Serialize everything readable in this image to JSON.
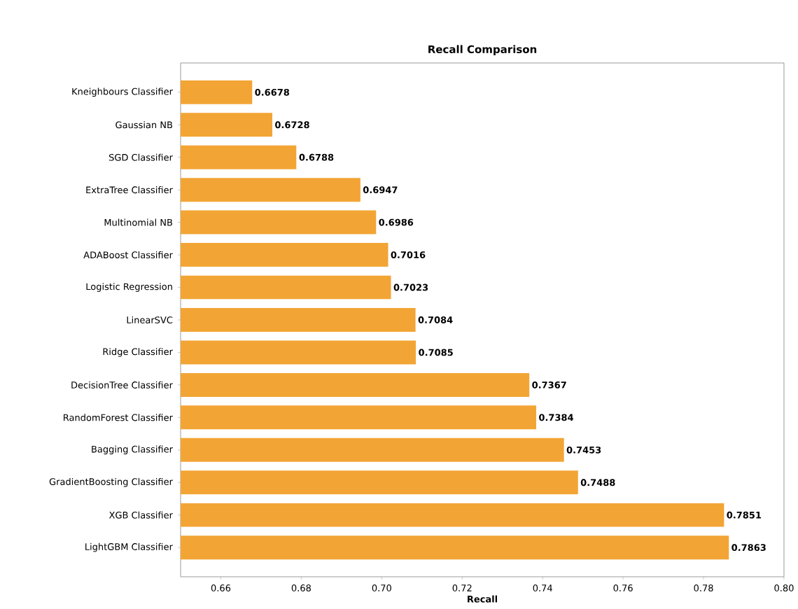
{
  "chart_data": {
    "type": "bar",
    "orientation": "horizontal",
    "title": "Recall Comparison",
    "xlabel": "Recall",
    "categories": [
      "Kneighbours Classifier",
      "Gaussian NB",
      "SGD Classifier",
      "ExtraTree Classifier",
      "Multinomial NB",
      "ADABoost Classifier",
      "Logistic Regression",
      "LinearSVC",
      "Ridge Classifier",
      "DecisionTree Classifier",
      "RandomForest Classifier",
      "Bagging Classifier",
      "GradientBoosting Classifier",
      "XGB Classifier",
      "LightGBM Classifier"
    ],
    "values": [
      0.6678,
      0.6728,
      0.6788,
      0.6947,
      0.6986,
      0.7016,
      0.7023,
      0.7084,
      0.7085,
      0.7367,
      0.7384,
      0.7453,
      0.7488,
      0.7851,
      0.7863
    ],
    "color": "#f2a535",
    "data_labels": true,
    "xlim": [
      0.65,
      0.8
    ],
    "xticks": [
      {
        "value": 0.66,
        "label": "0.66"
      },
      {
        "value": 0.68,
        "label": "0.68"
      },
      {
        "value": 0.7,
        "label": "0.70"
      },
      {
        "value": 0.72,
        "label": "0.72"
      },
      {
        "value": 0.74,
        "label": "0.74"
      },
      {
        "value": 0.76,
        "label": "0.76"
      },
      {
        "value": 0.78,
        "label": "0.78"
      },
      {
        "value": 0.8,
        "label": "0.80"
      }
    ]
  }
}
